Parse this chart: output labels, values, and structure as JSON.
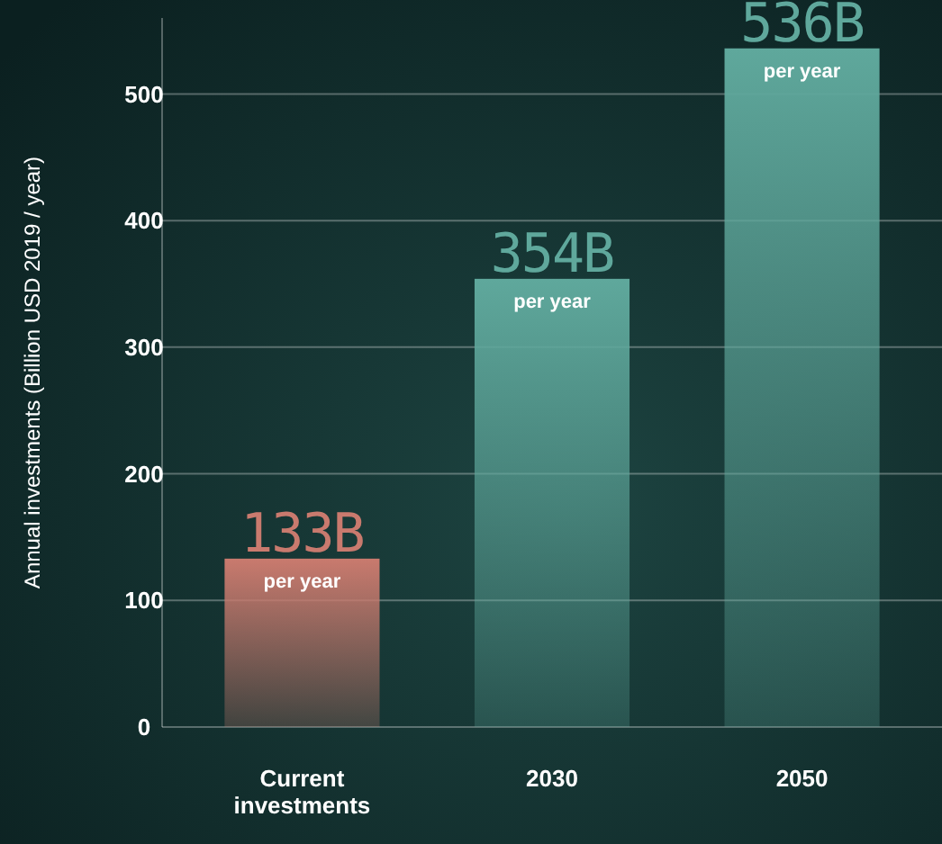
{
  "chart_data": {
    "type": "bar",
    "ylabel": "Annual investments (Billion USD 2019 / year)",
    "categories": [
      "Current investments",
      "2030",
      "2050"
    ],
    "values": [
      133,
      354,
      536
    ],
    "colors": [
      "#c97a6e",
      "#5fa89c",
      "#5fa89c"
    ],
    "value_labels": [
      "133B",
      "354B",
      "536B"
    ],
    "annotations": [
      {
        "text": "per year",
        "x": "Current investments",
        "y": 133
      },
      {
        "text": "per year",
        "x": "2030",
        "y": 354
      },
      {
        "text": "per year",
        "x": "2050",
        "y": 536
      }
    ],
    "ylim": [
      0,
      560
    ],
    "yticks": [
      0,
      100,
      200,
      300,
      400,
      500
    ],
    "grid": "y"
  }
}
